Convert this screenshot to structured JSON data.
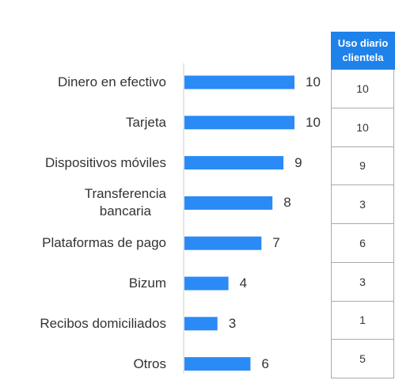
{
  "chart_data": {
    "type": "bar",
    "orientation": "horizontal",
    "categories": [
      "Dinero en efectivo",
      "Tarjeta",
      "Dispositivos móviles",
      "Transferencia\nbancaria",
      "Plataformas de pago",
      "Bizum",
      "Recibos domiciliados",
      "Otros"
    ],
    "values": [
      10,
      10,
      9,
      8,
      7,
      4,
      3,
      6
    ],
    "color": "#2a8af6"
  },
  "table": {
    "header": "Uso diario\nclientela",
    "rows": [
      10,
      10,
      9,
      3,
      6,
      3,
      1,
      5
    ]
  }
}
